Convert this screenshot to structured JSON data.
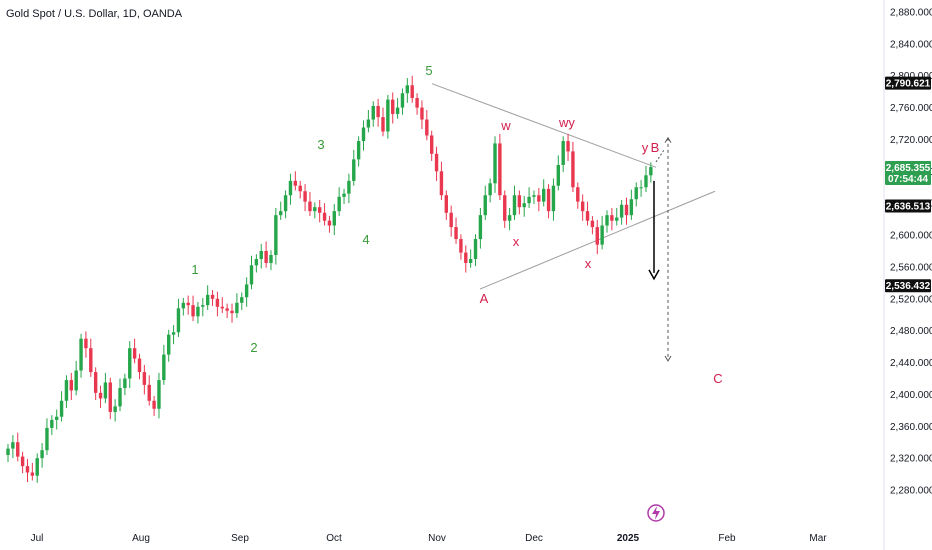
{
  "title": "Gold Spot / U.S. Dollar, 1D, OANDA",
  "colors": {
    "up": "#26a64a",
    "down": "#e8374f",
    "wave_up": "#3a9a3a",
    "wave_down": "#d21f4c",
    "line": "#9e9e9e"
  },
  "chart_data": {
    "type": "candlestick",
    "ylim": [
      2270,
      2890
    ],
    "yticks": [
      "2,280.000",
      "2,320.000",
      "2,360.000",
      "2,400.000",
      "2,440.000",
      "2,480.000",
      "2,520.000",
      "2,560.000",
      "2,600.000",
      "2,640.000",
      "2,680.000",
      "2,720.000",
      "2,760.000",
      "2,800.000",
      "2,840.000",
      "2,880.000"
    ],
    "x_labels": [
      "Jul",
      "Aug",
      "Sep",
      "Oct",
      "Nov",
      "Dec",
      "2025",
      "Feb",
      "Mar"
    ],
    "price_tags": [
      {
        "value": 2790.621,
        "text": "2,790.621",
        "style": "black"
      },
      {
        "value": 2685.355,
        "text": "2,685.355",
        "sub": "07:54:44",
        "style": "green"
      },
      {
        "value": 2636.513,
        "text": "2,636.513",
        "style": "black"
      },
      {
        "value": 2536.432,
        "text": "2,536.432",
        "style": "black"
      }
    ],
    "closes": [
      2332,
      2340,
      2322,
      2310,
      2302,
      2298,
      2320,
      2330,
      2358,
      2368,
      2372,
      2392,
      2418,
      2405,
      2430,
      2470,
      2458,
      2428,
      2402,
      2395,
      2415,
      2378,
      2385,
      2408,
      2420,
      2458,
      2445,
      2428,
      2412,
      2392,
      2382,
      2418,
      2450,
      2475,
      2478,
      2508,
      2515,
      2512,
      2498,
      2510,
      2512,
      2525,
      2520,
      2510,
      2508,
      2505,
      2502,
      2515,
      2522,
      2538,
      2562,
      2570,
      2580,
      2565,
      2575,
      2625,
      2630,
      2650,
      2668,
      2662,
      2655,
      2642,
      2630,
      2635,
      2628,
      2618,
      2612,
      2630,
      2648,
      2652,
      2668,
      2695,
      2718,
      2735,
      2745,
      2762,
      2748,
      2730,
      2770,
      2752,
      2760,
      2778,
      2788,
      2772,
      2760,
      2745,
      2725,
      2702,
      2680,
      2650,
      2628,
      2610,
      2595,
      2578,
      2565,
      2570,
      2595,
      2625,
      2650,
      2665,
      2715,
      2650,
      2618,
      2625,
      2650,
      2635,
      2640,
      2648,
      2650,
      2642,
      2658,
      2630,
      2662,
      2688,
      2718,
      2705,
      2660,
      2642,
      2630,
      2618,
      2610,
      2588,
      2612,
      2625,
      2618,
      2622,
      2638,
      2625,
      2645,
      2660,
      2660,
      2675,
      2685.355
    ],
    "waves": [
      {
        "label": "1",
        "kind": "up"
      },
      {
        "label": "2",
        "kind": "up"
      },
      {
        "label": "3",
        "kind": "up"
      },
      {
        "label": "4",
        "kind": "up"
      },
      {
        "label": "5",
        "kind": "up"
      },
      {
        "label": "A",
        "kind": "down"
      },
      {
        "label": "B",
        "kind": "down"
      },
      {
        "label": "C",
        "kind": "down"
      },
      {
        "label": "w",
        "kind": "down"
      },
      {
        "label": "x",
        "kind": "down"
      },
      {
        "label": "x",
        "kind": "down"
      },
      {
        "label": "wy",
        "kind": "down"
      },
      {
        "label": "y",
        "kind": "down"
      }
    ],
    "triangle": {
      "upper": [
        [
          2790,
          2685
        ]
      ],
      "lower": [
        [
          2536,
          2636
        ]
      ]
    },
    "projection": {
      "arrow_target": 2545,
      "dashed_target": 2442
    }
  }
}
